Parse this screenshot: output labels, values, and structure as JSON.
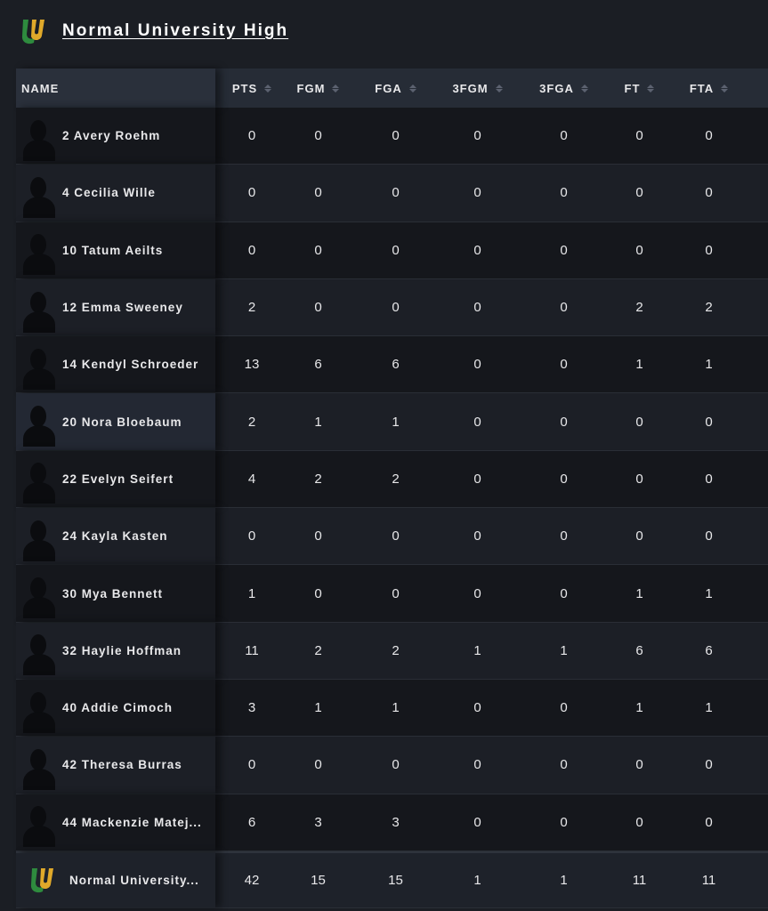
{
  "team": {
    "name": "Normal University High",
    "logo": "u-logo",
    "colors": {
      "green": "#2e8b3e",
      "gold": "#e0a92a"
    }
  },
  "columns": [
    "NAME",
    "PTS",
    "FGM",
    "FGA",
    "3FGM",
    "3FGA",
    "FT",
    "FTA"
  ],
  "players": [
    {
      "name": "2 Avery Roehm",
      "stats": [
        0,
        0,
        0,
        0,
        0,
        0,
        0
      ]
    },
    {
      "name": "4 Cecilia Wille",
      "stats": [
        0,
        0,
        0,
        0,
        0,
        0,
        0
      ]
    },
    {
      "name": "10 Tatum Aeilts",
      "stats": [
        0,
        0,
        0,
        0,
        0,
        0,
        0
      ]
    },
    {
      "name": "12 Emma Sweeney",
      "stats": [
        2,
        0,
        0,
        0,
        0,
        2,
        2
      ]
    },
    {
      "name": "14 Kendyl Schroeder",
      "stats": [
        13,
        6,
        6,
        0,
        0,
        1,
        1
      ]
    },
    {
      "name": "20 Nora Bloebaum",
      "stats": [
        2,
        1,
        1,
        0,
        0,
        0,
        0
      ]
    },
    {
      "name": "22 Evelyn Seifert",
      "stats": [
        4,
        2,
        2,
        0,
        0,
        0,
        0
      ]
    },
    {
      "name": "24 Kayla Kasten",
      "stats": [
        0,
        0,
        0,
        0,
        0,
        0,
        0
      ]
    },
    {
      "name": "30 Mya Bennett",
      "stats": [
        1,
        0,
        0,
        0,
        0,
        1,
        1
      ]
    },
    {
      "name": "32 Haylie Hoffman",
      "stats": [
        11,
        2,
        2,
        1,
        1,
        6,
        6
      ]
    },
    {
      "name": "40 Addie Cimoch",
      "stats": [
        3,
        1,
        1,
        0,
        0,
        1,
        1
      ]
    },
    {
      "name": "42 Theresa Burras",
      "stats": [
        0,
        0,
        0,
        0,
        0,
        0,
        0
      ]
    },
    {
      "name": "44 Mackenzie Matej...",
      "stats": [
        6,
        3,
        3,
        0,
        0,
        0,
        0
      ]
    }
  ],
  "totals": {
    "name": "Normal University...",
    "stats": [
      42,
      15,
      15,
      1,
      1,
      11,
      11
    ]
  }
}
